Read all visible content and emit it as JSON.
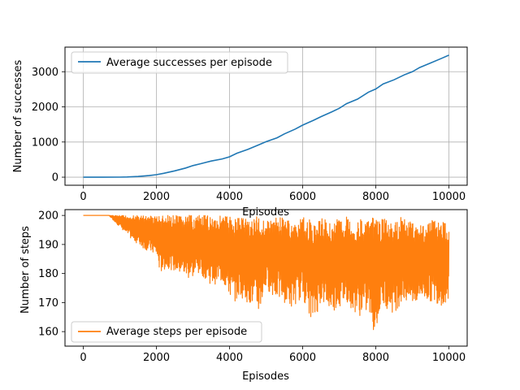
{
  "chart_data": [
    {
      "type": "line",
      "xlabel": "Episodes",
      "ylabel": "Number of successes",
      "xlim": [
        -500,
        10500
      ],
      "ylim": [
        -230,
        3700
      ],
      "xticks": [
        0,
        2000,
        4000,
        6000,
        8000,
        10000
      ],
      "xtick_labels": [
        "0",
        "2000",
        "4000",
        "6000",
        "8000",
        "10000"
      ],
      "yticks": [
        0,
        1000,
        2000,
        3000
      ],
      "ytick_labels": [
        "0",
        "1000",
        "2000",
        "3000"
      ],
      "grid": true,
      "legend": "upper-left",
      "color": "#1f77b4",
      "series": [
        {
          "name": "Average successes per episode",
          "x": [
            0,
            500,
            1000,
            1200,
            1500,
            1800,
            2000,
            2200,
            2500,
            2800,
            3000,
            3200,
            3500,
            3800,
            4000,
            4200,
            4500,
            4800,
            5000,
            5300,
            5500,
            5800,
            6000,
            6300,
            6500,
            6800,
            7000,
            7200,
            7500,
            7800,
            8000,
            8200,
            8500,
            8800,
            9000,
            9200,
            9500,
            9800,
            10000
          ],
          "y": [
            0,
            0,
            2,
            5,
            20,
            45,
            70,
            110,
            180,
            260,
            330,
            380,
            460,
            520,
            580,
            680,
            790,
            920,
            1010,
            1120,
            1230,
            1370,
            1480,
            1620,
            1720,
            1860,
            1960,
            2090,
            2220,
            2420,
            2510,
            2650,
            2770,
            2920,
            3000,
            3120,
            3250,
            3380,
            3470
          ]
        }
      ]
    },
    {
      "type": "line",
      "xlabel": "Episodes",
      "ylabel": "Number of steps",
      "xlim": [
        -500,
        10500
      ],
      "ylim": [
        155,
        202
      ],
      "xticks": [
        0,
        2000,
        4000,
        6000,
        8000,
        10000
      ],
      "xtick_labels": [
        "0",
        "2000",
        "4000",
        "6000",
        "8000",
        "10000"
      ],
      "yticks": [
        160,
        170,
        180,
        190,
        200
      ],
      "ytick_labels": [
        "160",
        "170",
        "180",
        "190",
        "200"
      ],
      "grid": false,
      "legend": "lower-left",
      "color": "#ff7f0e",
      "series": [
        {
          "name": "Average steps per episode",
          "x": [
            0,
            700,
            1000,
            1300,
            1600,
            2000,
            2100,
            2300,
            2600,
            2900,
            3200,
            3500,
            3800,
            4000,
            4100,
            4300,
            4600,
            4800,
            5000,
            5200,
            5500,
            5700,
            6000,
            6100,
            6300,
            6500,
            6800,
            7000,
            7200,
            7400,
            7600,
            7800,
            8000,
            8050,
            8200,
            8500,
            8700,
            9000,
            9300,
            9600,
            9800,
            10000
          ],
          "y_max": [
            200,
            200,
            200,
            200,
            200,
            200,
            200,
            200,
            200,
            200,
            200,
            200,
            200,
            200,
            199,
            200,
            199,
            200,
            198,
            199,
            200,
            197,
            199,
            200,
            197,
            199,
            198,
            199,
            200,
            197,
            199,
            198,
            200,
            198,
            199,
            197,
            200,
            198,
            197,
            199,
            198,
            197
          ],
          "y_min": [
            200,
            200,
            196,
            192,
            189,
            186,
            180,
            182,
            180,
            178,
            180,
            176,
            177,
            172,
            170,
            172,
            169,
            166,
            175,
            172,
            170,
            168,
            172,
            168,
            163,
            170,
            167,
            168,
            170,
            167,
            165,
            167,
            157,
            164,
            169,
            166,
            170,
            169,
            171,
            170,
            169,
            170
          ]
        }
      ]
    }
  ]
}
